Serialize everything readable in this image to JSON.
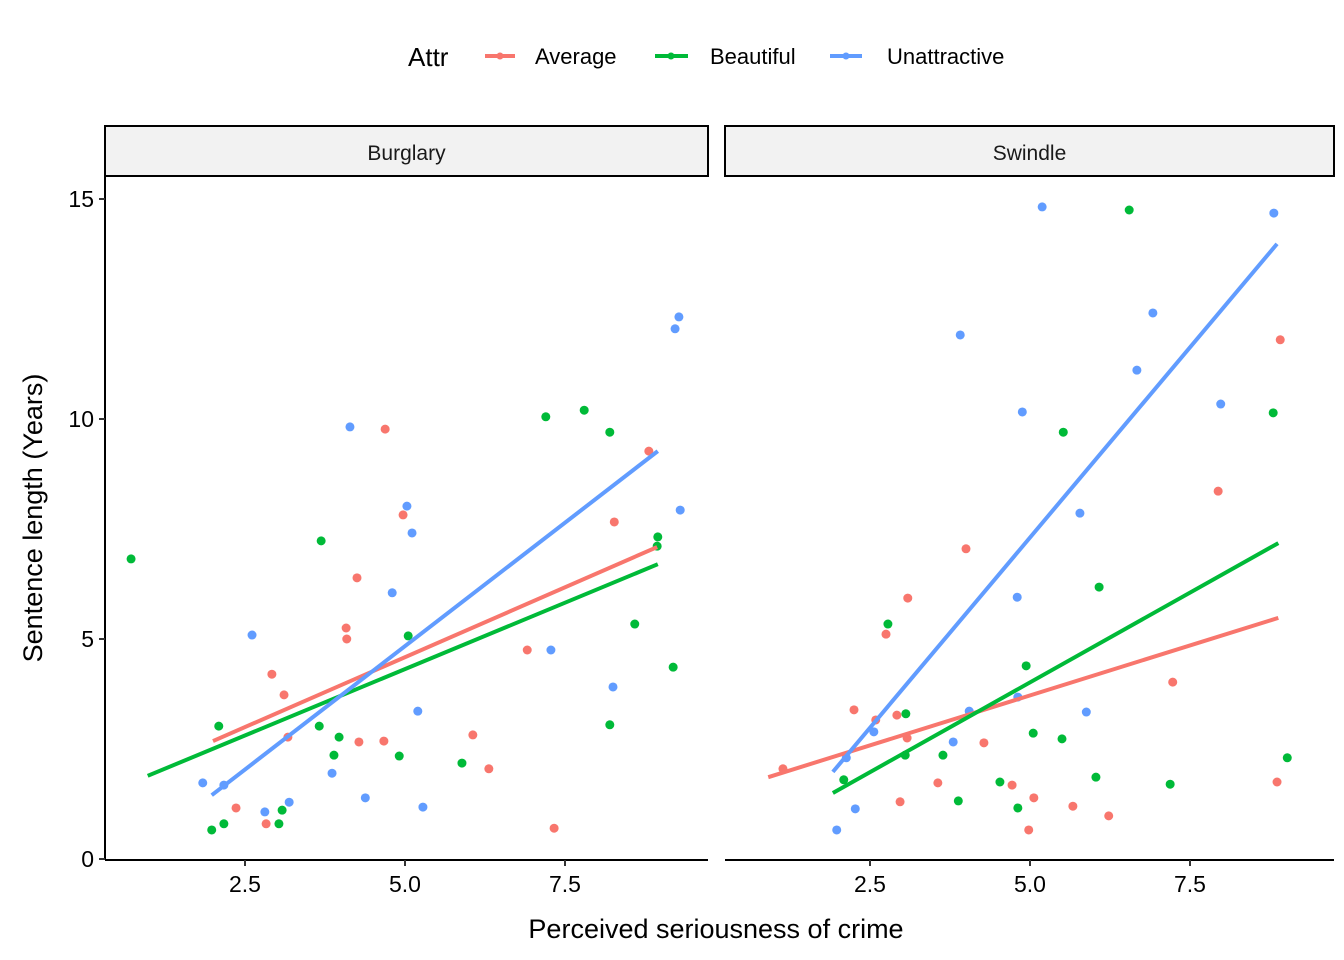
{
  "chart_data": {
    "type": "scatter",
    "title": "",
    "xlabel": "Perceived seriousness of crime",
    "ylabel": "Sentence length (Years)",
    "xlim": [
      0.4,
      9.8
    ],
    "ylim": [
      -0.3,
      15.5
    ],
    "x_ticks": [
      2.5,
      5.0,
      7.5
    ],
    "x_tick_labels": [
      "2.5",
      "5.0",
      "7.5"
    ],
    "y_ticks": [
      0,
      5,
      10,
      15
    ],
    "y_tick_labels": [
      "0",
      "5",
      "10",
      "15"
    ],
    "grid": false,
    "legend": {
      "title": "Attr",
      "position": "top",
      "entries": [
        {
          "name": "Average",
          "color": "#F8766D"
        },
        {
          "name": "Beautiful",
          "color": "#00BA38"
        },
        {
          "name": "Unattractive",
          "color": "#619CFF"
        }
      ]
    },
    "facets": [
      {
        "label": "Burglary",
        "series": [
          {
            "name": "Average",
            "color": "#F8766D",
            "points": [
              [
                4.69,
                9.77
              ],
              [
                4.97,
                7.82
              ],
              [
                4.25,
                6.39
              ],
              [
                4.08,
                5.25
              ],
              [
                4.09,
                5.0
              ],
              [
                2.92,
                4.2
              ],
              [
                3.11,
                3.73
              ],
              [
                3.17,
                2.77
              ],
              [
                4.28,
                2.66
              ],
              [
                4.67,
                2.68
              ],
              [
                2.36,
                1.16
              ],
              [
                2.83,
                0.8
              ],
              [
                8.81,
                9.27
              ],
              [
                8.27,
                7.66
              ],
              [
                6.91,
                4.75
              ],
              [
                6.06,
                2.82
              ],
              [
                6.31,
                2.05
              ],
              [
                7.33,
                0.7
              ]
            ],
            "fit": [
              [
                2.0,
                2.68
              ],
              [
                8.94,
                7.09
              ]
            ]
          },
          {
            "name": "Beautiful",
            "color": "#00BA38",
            "points": [
              [
                3.69,
                7.23
              ],
              [
                0.72,
                6.82
              ],
              [
                5.05,
                5.07
              ],
              [
                2.09,
                3.02
              ],
              [
                3.66,
                3.02
              ],
              [
                3.97,
                2.77
              ],
              [
                3.89,
                2.36
              ],
              [
                4.91,
                2.34
              ],
              [
                3.08,
                1.11
              ],
              [
                2.17,
                0.8
              ],
              [
                1.98,
                0.66
              ],
              [
                3.03,
                0.8
              ],
              [
                7.2,
                10.05
              ],
              [
                7.8,
                10.2
              ],
              [
                8.2,
                9.7
              ],
              [
                8.95,
                7.32
              ],
              [
                8.94,
                7.11
              ],
              [
                8.59,
                5.34
              ],
              [
                9.19,
                4.36
              ],
              [
                8.2,
                3.05
              ],
              [
                5.89,
                2.18
              ]
            ],
            "fit": [
              [
                0.98,
                1.89
              ],
              [
                8.95,
                6.7
              ]
            ]
          },
          {
            "name": "Unattractive",
            "color": "#619CFF",
            "points": [
              [
                4.14,
                9.82
              ],
              [
                5.03,
                8.02
              ],
              [
                5.11,
                7.41
              ],
              [
                4.8,
                6.05
              ],
              [
                2.61,
                5.09
              ],
              [
                3.86,
                1.95
              ],
              [
                1.84,
                1.73
              ],
              [
                2.17,
                1.68
              ],
              [
                4.38,
                1.39
              ],
              [
                3.19,
                1.29
              ],
              [
                2.81,
                1.07
              ],
              [
                9.3,
                7.93
              ],
              [
                7.28,
                4.75
              ],
              [
                8.25,
                3.91
              ],
              [
                5.2,
                3.36
              ],
              [
                5.28,
                1.18
              ],
              [
                9.28,
                12.32
              ],
              [
                9.22,
                12.05
              ]
            ],
            "fit": [
              [
                1.98,
                1.45
              ],
              [
                8.95,
                9.27
              ]
            ]
          }
        ]
      },
      {
        "label": "Swindle",
        "series": [
          {
            "name": "Average",
            "color": "#F8766D",
            "points": [
              [
                8.91,
                11.8
              ],
              [
                4.0,
                7.05
              ],
              [
                3.09,
                5.93
              ],
              [
                2.75,
                5.11
              ],
              [
                7.94,
                8.36
              ],
              [
                2.25,
                3.39
              ],
              [
                2.92,
                3.27
              ],
              [
                2.59,
                3.16
              ],
              [
                3.08,
                2.75
              ],
              [
                4.28,
                2.64
              ],
              [
                1.14,
                2.05
              ],
              [
                3.56,
                1.73
              ],
              [
                4.72,
                1.68
              ],
              [
                5.06,
                1.39
              ],
              [
                2.97,
                1.3
              ],
              [
                4.98,
                0.66
              ],
              [
                7.23,
                4.02
              ],
              [
                8.86,
                1.75
              ],
              [
                5.67,
                1.2
              ],
              [
                6.23,
                0.98
              ]
            ],
            "fit": [
              [
                0.91,
                1.86
              ],
              [
                8.88,
                5.48
              ]
            ]
          },
          {
            "name": "Beautiful",
            "color": "#00BA38",
            "points": [
              [
                6.55,
                14.75
              ],
              [
                8.8,
                10.14
              ],
              [
                2.78,
                5.34
              ],
              [
                5.52,
                9.7
              ],
              [
                6.08,
                6.18
              ],
              [
                4.94,
                4.39
              ],
              [
                3.06,
                3.3
              ],
              [
                5.05,
                2.86
              ],
              [
                3.05,
                2.36
              ],
              [
                3.64,
                2.36
              ],
              [
                2.09,
                1.8
              ],
              [
                4.53,
                1.75
              ],
              [
                3.88,
                1.32
              ],
              [
                4.81,
                1.16
              ],
              [
                5.5,
                2.73
              ],
              [
                9.02,
                2.3
              ],
              [
                6.03,
                1.86
              ],
              [
                7.19,
                1.7
              ]
            ],
            "fit": [
              [
                1.92,
                1.5
              ],
              [
                8.88,
                7.18
              ]
            ]
          },
          {
            "name": "Unattractive",
            "color": "#619CFF",
            "points": [
              [
                3.91,
                11.91
              ],
              [
                4.88,
                10.16
              ],
              [
                5.19,
                14.82
              ],
              [
                8.81,
                14.68
              ],
              [
                6.92,
                12.41
              ],
              [
                6.67,
                11.11
              ],
              [
                7.98,
                10.34
              ],
              [
                4.8,
                5.95
              ],
              [
                5.78,
                7.86
              ],
              [
                4.81,
                3.68
              ],
              [
                4.05,
                3.36
              ],
              [
                2.56,
                2.89
              ],
              [
                3.8,
                2.66
              ],
              [
                2.13,
                2.3
              ],
              [
                2.27,
                1.14
              ],
              [
                1.98,
                0.66
              ],
              [
                5.88,
                3.34
              ]
            ],
            "fit": [
              [
                1.92,
                1.98
              ],
              [
                8.86,
                13.98
              ]
            ]
          }
        ]
      }
    ]
  }
}
